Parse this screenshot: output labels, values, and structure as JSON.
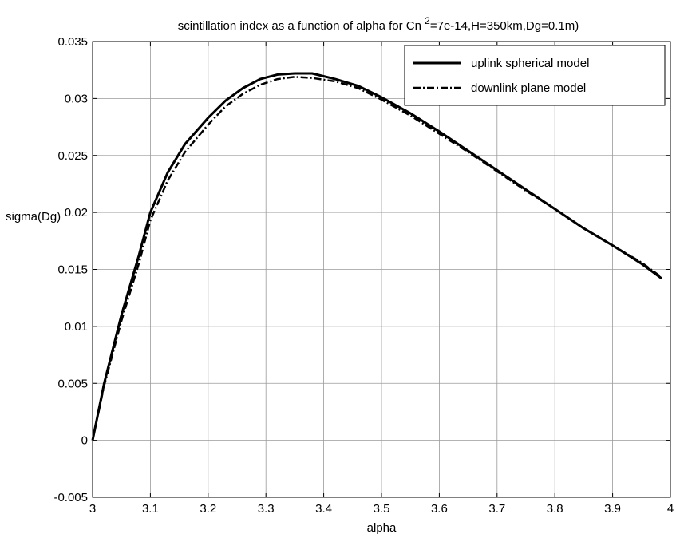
{
  "chart_data": {
    "type": "line",
    "title_main": "scintillation index as a function of alpha for Cn ",
    "title_sup": "2",
    "title_tail": "=7e-14,H=350km,Dg=0.1m)",
    "xlabel": "alpha",
    "ylabel": "sigma(Dg)",
    "xlim": [
      3,
      4
    ],
    "ylim": [
      -0.005,
      0.035
    ],
    "xticks": [
      3,
      3.1,
      3.2,
      3.3,
      3.4,
      3.5,
      3.6,
      3.7,
      3.8,
      3.9,
      4
    ],
    "xtick_labels": [
      "3",
      "3.1",
      "3.2",
      "3.3",
      "3.4",
      "3.5",
      "3.6",
      "3.7",
      "3.8",
      "3.9",
      "4"
    ],
    "yticks": [
      -0.005,
      0,
      0.005,
      0.01,
      0.015,
      0.02,
      0.025,
      0.03,
      0.035
    ],
    "ytick_labels": [
      "-0.005",
      "0",
      "0.005",
      "0.01",
      "0.015",
      "0.02",
      "0.025",
      "0.03",
      "0.035"
    ],
    "grid": true,
    "legend_position": "top-right",
    "series": [
      {
        "name": "uplink spherical model",
        "style": "solid",
        "x": [
          3.0,
          3.02,
          3.05,
          3.08,
          3.1,
          3.13,
          3.16,
          3.2,
          3.23,
          3.26,
          3.29,
          3.32,
          3.35,
          3.38,
          3.42,
          3.46,
          3.5,
          3.55,
          3.6,
          3.65,
          3.7,
          3.75,
          3.8,
          3.85,
          3.9,
          3.95,
          3.985
        ],
        "y": [
          0.0,
          0.005,
          0.011,
          0.0162,
          0.02,
          0.0235,
          0.026,
          0.0283,
          0.0298,
          0.0309,
          0.0317,
          0.0321,
          0.0322,
          0.0322,
          0.0317,
          0.0311,
          0.0301,
          0.0287,
          0.0271,
          0.0254,
          0.0237,
          0.022,
          0.0203,
          0.0186,
          0.0171,
          0.0155,
          0.0142
        ]
      },
      {
        "name": "downlink plane model",
        "style": "dashdot",
        "x": [
          3.0,
          3.02,
          3.05,
          3.08,
          3.1,
          3.13,
          3.16,
          3.2,
          3.23,
          3.26,
          3.29,
          3.32,
          3.35,
          3.38,
          3.42,
          3.46,
          3.5,
          3.55,
          3.6,
          3.65,
          3.7,
          3.75,
          3.8,
          3.85,
          3.9,
          3.95,
          3.985
        ],
        "y": [
          0.0,
          0.0048,
          0.0105,
          0.0155,
          0.0193,
          0.0228,
          0.0253,
          0.0277,
          0.0293,
          0.0304,
          0.0312,
          0.0317,
          0.0319,
          0.0318,
          0.0315,
          0.0309,
          0.0299,
          0.0285,
          0.0269,
          0.0253,
          0.0236,
          0.0219,
          0.0203,
          0.0186,
          0.0171,
          0.0156,
          0.0143
        ]
      }
    ]
  }
}
